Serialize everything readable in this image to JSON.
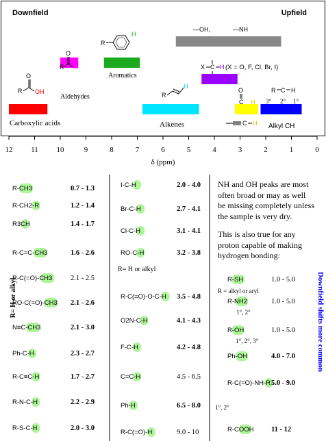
{
  "chart_data": {
    "type": "range-bar",
    "title_left": "Downfield",
    "title_right": "Upfield",
    "xlabel": "δ (ppm)",
    "xlim": [
      12,
      0
    ],
    "ticks": [
      "12",
      "11",
      "10",
      "9",
      "8",
      "7",
      "6",
      "5",
      "4",
      "3",
      "2",
      "1",
      "0"
    ],
    "bars": [
      {
        "label": "Carboxylic acids",
        "from": 12.0,
        "to": 10.5,
        "color": "#ff0000",
        "tier": 0
      },
      {
        "label": "Aldehydes",
        "from": 10.0,
        "to": 9.3,
        "color": "#ff00ff",
        "tier": 2
      },
      {
        "label": "Aromatics",
        "from": 8.3,
        "to": 6.9,
        "color": "#1eaa1e",
        "tier": 3
      },
      {
        "label": "Alkenes",
        "from": 6.8,
        "to": 4.6,
        "color": "#00e5ff",
        "tier": 0
      },
      {
        "label": "X–C–H",
        "from": 4.5,
        "to": 3.1,
        "color": "#9900ff",
        "tier": 1
      },
      {
        "label": "",
        "from": 3.2,
        "to": 2.3,
        "color": "#ffff00",
        "tier": 0
      },
      {
        "label": "Alkyl CH",
        "from": 2.2,
        "to": 0.6,
        "color": "#0000ff",
        "tier": 0
      },
      {
        "label": "—OH, —NH",
        "from": 5.5,
        "to": 1.4,
        "color": "#888888",
        "tier": 4
      }
    ],
    "annotations": {
      "xh_note": "(X = O, F, Cl, Br, I)",
      "alkyl_orders": [
        "3°",
        "2°",
        "1°"
      ],
      "oh": "—OH,",
      "nh": "—NH"
    }
  },
  "labels": {
    "carboxylic": "Carboxylic acids",
    "aldehydes": "Aldehydes",
    "aromatics": "Aromatics",
    "alkenes": "Alkenes",
    "alkyl": "Alkyl CH",
    "side": "R= H or alkyl",
    "mid_note": "R= H or alkyl",
    "vertical": "Downfield shifts more common",
    "r_note": "R = alkyl or aryl",
    "deg12": "1°, 2°",
    "deg123": "1°, 2°, 3°"
  },
  "col1": [
    {
      "formula": "R-CH3",
      "range": "0.7 - 1.3",
      "bold": true
    },
    {
      "formula": "R-CH2-R",
      "range": "1.2 - 1.4",
      "bold": true
    },
    {
      "formula": "R3CH",
      "range": "1.4 - 1.7",
      "bold": true
    },
    {
      "formula": "R-C=C-CH3",
      "range": "1.6 - 2.6",
      "bold": true
    },
    {
      "formula": "R-C(=O)-CH3",
      "range": "2.1 - 2.5",
      "bold": false
    },
    {
      "formula": "RO-C(=O)-CH3",
      "range": "2.1 - 2.6",
      "bold": true
    },
    {
      "formula": "N≡C-CH3",
      "range": "2.1 - 3.0",
      "bold": true
    },
    {
      "formula": "Ph-C-H",
      "range": "2.3 - 2.7",
      "bold": true
    },
    {
      "formula": "R-C≡C-H",
      "range": "1.7 - 2.7",
      "bold": true
    },
    {
      "formula": "R-N-C-H",
      "range": "2.2 - 2.9",
      "bold": true
    },
    {
      "formula": "R-S-C-H",
      "range": "2.0 - 3.0",
      "bold": true
    }
  ],
  "col2": [
    {
      "formula": "I-C-H",
      "range": "2.0 - 4.0",
      "bold": true
    },
    {
      "formula": "Br-C-H",
      "range": "2.7 - 4.1",
      "bold": true
    },
    {
      "formula": "Cl-C-H",
      "range": "3.1 - 4.1",
      "bold": true
    },
    {
      "formula": "RO-C-H",
      "range": "3.2 - 3.8",
      "bold": true
    },
    {
      "formula": "R-C(=O)-O-C-H",
      "range": "3.5 - 4.8",
      "bold": true
    },
    {
      "formula": "O2N-C-H",
      "range": "4.1 - 4.3",
      "bold": true
    },
    {
      "formula": "F-C-H",
      "range": "4.2 - 4.8",
      "bold": true
    },
    {
      "formula": "C=C-H",
      "range": "4.5 - 6.5",
      "bold": false
    },
    {
      "formula": "Ph-H",
      "range": "6.5 - 8.0",
      "bold": true
    },
    {
      "formula": "R-C(=O)-H",
      "range": "9.0 - 10",
      "bold": false
    }
  ],
  "notes": {
    "p1": "NH and OH peaks are most often broad or may as well be missing completely unless the sample is very dry.",
    "p2": "This is also true for any proton capable of making hydrogen bonding:"
  },
  "col3": [
    {
      "formula": "R-SH",
      "range": "1.0 - 5.0",
      "bold": false
    },
    {
      "formula": "R-NH2",
      "range": "1.0 - 5.0",
      "bold": false
    },
    {
      "formula": "R-OH",
      "range": "1.0 - 5.0",
      "bold": false
    },
    {
      "formula": "Ph-OH",
      "range": "4.0 - 7.0",
      "bold": true
    },
    {
      "formula": "R-C(=O)-NH-R",
      "range": "5.0 - 9.0",
      "bold": true
    },
    {
      "formula": "R-COOH",
      "range": "11 - 12",
      "bold": true
    }
  ],
  "atoms": {
    "R": "R",
    "H": "H",
    "O": "O",
    "OH": "OH",
    "C": "C",
    "N": "N",
    "S": "S",
    "I": "I",
    "Br": "Br",
    "Cl": "Cl",
    "F": "F",
    "RO": "RO",
    "CH3": "CH",
    "3": "3",
    "2": "2",
    "SH": "SH",
    "NH": "NH",
    "X": "X",
    "O2N": "O",
    "NN": "N"
  }
}
